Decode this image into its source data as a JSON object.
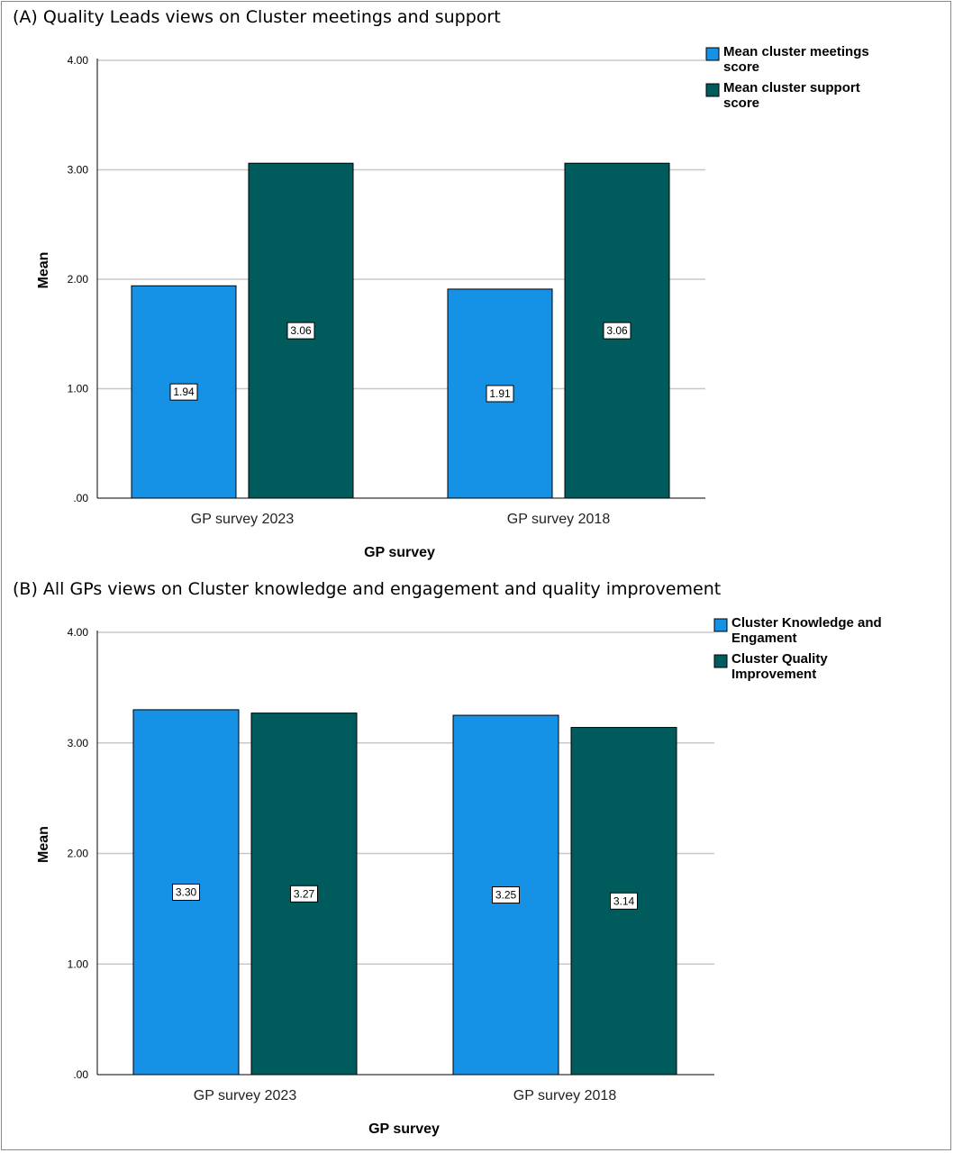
{
  "colors": {
    "series1": "#1591e6",
    "series2": "#005c5c",
    "grid": "#c8c8c8",
    "axis": "#000000"
  },
  "chart_data": [
    {
      "type": "bar",
      "panel_title": "(A)  Quality Leads views on Cluster meetings and support",
      "categories": [
        "GP survey 2023",
        "GP survey 2018"
      ],
      "series": [
        {
          "name": "Mean cluster meetings score",
          "legend_lines": [
            "Mean cluster meetings",
            "score"
          ],
          "values": [
            1.94,
            1.91
          ],
          "labels": [
            "1.94",
            "1.91"
          ]
        },
        {
          "name": "Mean cluster support score",
          "legend_lines": [
            "Mean cluster support",
            "score"
          ],
          "values": [
            3.06,
            3.06
          ],
          "labels": [
            "3.06",
            "3.06"
          ]
        }
      ],
      "xlabel": "GP survey",
      "ylabel": "Mean",
      "ylim": [
        0,
        4
      ],
      "yticks": [
        0,
        1,
        2,
        3,
        4
      ],
      "ytick_labels": [
        ".00",
        "1.00",
        "2.00",
        "3.00",
        "4.00"
      ],
      "grid": true,
      "legend": "top-right"
    },
    {
      "type": "bar",
      "panel_title": "(B)  All GPs views on Cluster knowledge and engagement and quality improvement",
      "categories": [
        "GP survey 2023",
        "GP survey 2018"
      ],
      "series": [
        {
          "name": "Cluster Knowledge and Engament",
          "legend_lines": [
            "Cluster Knowledge and",
            "Engament"
          ],
          "values": [
            3.3,
            3.25
          ],
          "labels": [
            "3.30",
            "3.25"
          ]
        },
        {
          "name": "Cluster Quality Improvement",
          "legend_lines": [
            "Cluster Quality",
            "Improvement"
          ],
          "values": [
            3.27,
            3.14
          ],
          "labels": [
            "3.27",
            "3.14"
          ]
        }
      ],
      "xlabel": "GP survey",
      "ylabel": "Mean",
      "ylim": [
        0,
        4
      ],
      "yticks": [
        0,
        1,
        2,
        3,
        4
      ],
      "ytick_labels": [
        ".00",
        "1.00",
        "2.00",
        "3.00",
        "4.00"
      ],
      "grid": true,
      "legend": "top-right"
    }
  ]
}
